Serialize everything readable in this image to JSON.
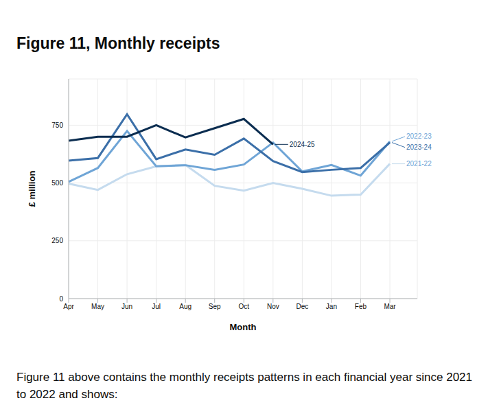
{
  "title": "Figure 11, Monthly receipts",
  "caption": "Figure 11 above contains the monthly receipts patterns in each financial year since 2021 to 2022 and shows:",
  "chart_data": {
    "type": "line",
    "x_label": "Month",
    "y_label": "£ million",
    "categories": [
      "Apr",
      "May",
      "Jun",
      "Jul",
      "Aug",
      "Sep",
      "Oct",
      "Nov",
      "Dec",
      "Jan",
      "Feb",
      "Mar"
    ],
    "ylim": [
      0,
      950
    ],
    "yticks": [
      0,
      250,
      500,
      750
    ],
    "grid": true,
    "series": [
      {
        "name": "2021-22",
        "color": "#c5dbee",
        "values": [
          497,
          470,
          538,
          572,
          578,
          488,
          467,
          500,
          475,
          445,
          450,
          583
        ]
      },
      {
        "name": "2022-23",
        "color": "#6fa5d6",
        "values": [
          505,
          565,
          725,
          572,
          577,
          557,
          580,
          675,
          550,
          578,
          532,
          680
        ]
      },
      {
        "name": "2023-24",
        "color": "#3b6fa8",
        "values": [
          597,
          608,
          797,
          603,
          645,
          622,
          692,
          595,
          547,
          557,
          565,
          675
        ]
      },
      {
        "name": "2024-25",
        "color": "#0b2d50",
        "values": [
          683,
          700,
          700,
          750,
          697,
          737,
          777,
          667,
          null,
          null,
          null,
          null
        ]
      }
    ]
  }
}
